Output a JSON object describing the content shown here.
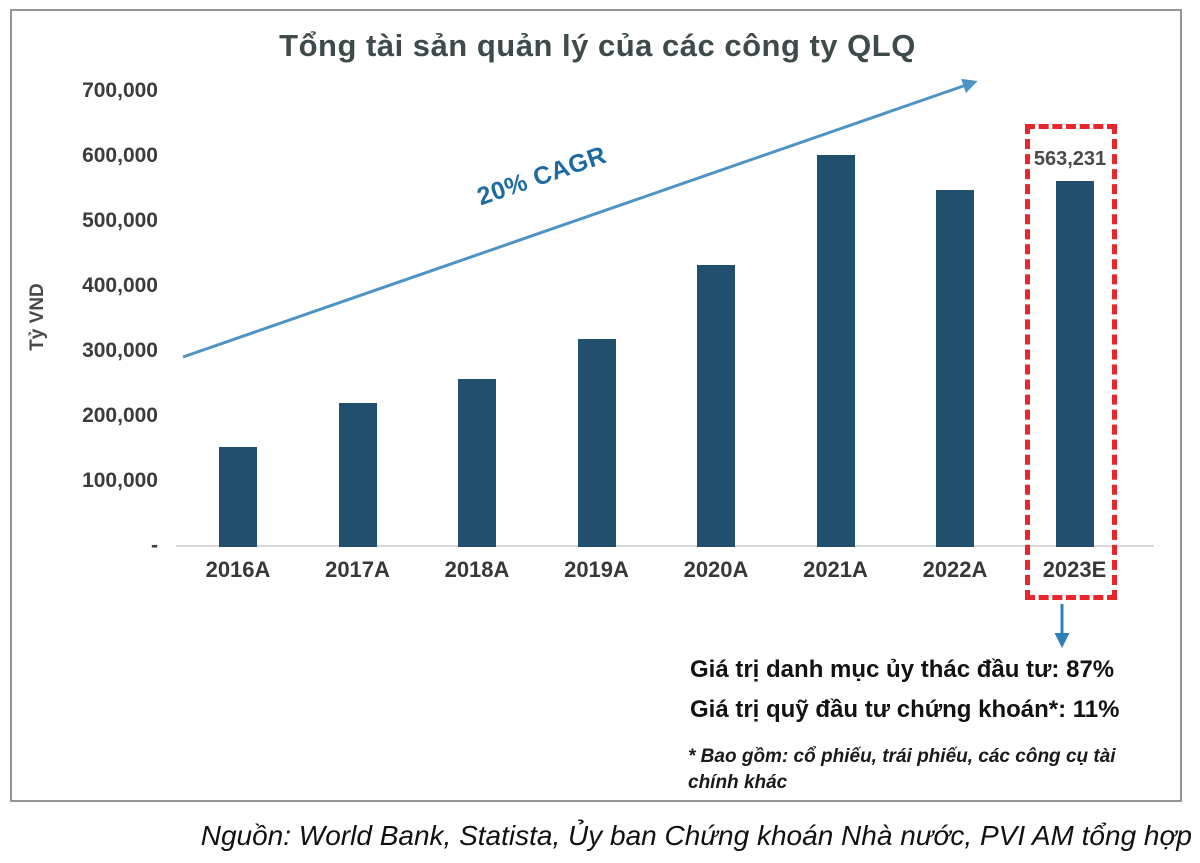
{
  "chart_data": {
    "type": "bar",
    "title": "Tổng tài sản quản lý của các công ty QLQ",
    "ylabel": "Tỷ VND",
    "xlabel": "",
    "categories": [
      "2016A",
      "2017A",
      "2018A",
      "2019A",
      "2020A",
      "2021A",
      "2022A",
      "2023E"
    ],
    "values": [
      154000,
      222000,
      258000,
      320000,
      434000,
      603000,
      550000,
      563231
    ],
    "ylim": [
      0,
      700000
    ],
    "yticks": [
      {
        "label": "700,000",
        "value": 700000
      },
      {
        "label": "600,000",
        "value": 600000
      },
      {
        "label": "500,000",
        "value": 500000
      },
      {
        "label": "400,000",
        "value": 400000
      },
      {
        "label": "300,000",
        "value": 300000
      },
      {
        "label": "200,000",
        "value": 200000
      },
      {
        "label": "100,000",
        "value": 100000
      },
      {
        "label": "-",
        "value": 0
      }
    ],
    "grid": false,
    "legend_position": "none",
    "cagr_label": "20% CAGR",
    "highlight_category": "2023E",
    "highlight_value_label": "563,231"
  },
  "annotations": {
    "line1": "Giá trị danh mục ủy thác đầu tư: 87%",
    "line2": "Giá trị quỹ đầu tư chứng khoán*: 11%",
    "footnote": "* Bao gồm: cổ phiếu, trái phiếu, các công cụ tài chính khác"
  },
  "source": "Nguồn: World Bank, Statista, Ủy ban Chứng khoán Nhà nước, PVI AM tổng hợp",
  "colors": {
    "bar": "#20506e",
    "trend_arrow": "#4e93c4",
    "down_arrow": "#2e80b8",
    "cagr_text": "#1d6ba3",
    "highlight_box": "#e8262c",
    "title_text": "#3e4b4a",
    "axis_text": "#3c3c3c",
    "baseline": "#d8d8d8",
    "panel_border": "#949494"
  }
}
